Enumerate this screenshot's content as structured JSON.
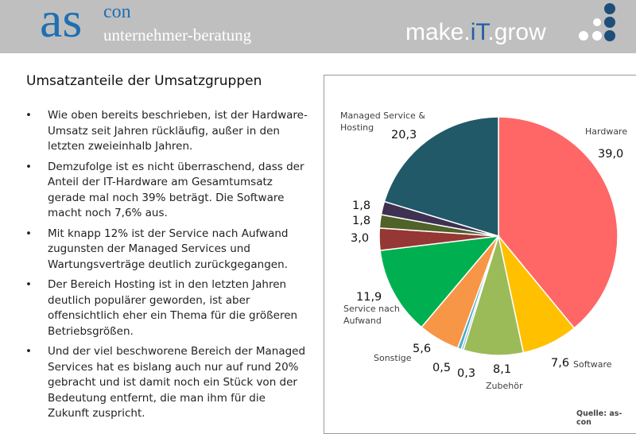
{
  "header": {
    "logo_main": "as",
    "logo_sup": "con",
    "logo_sub": "unternehmer-beratung",
    "slogan_1": "make.",
    "slogan_2": "iT",
    "slogan_3": ".grow"
  },
  "slide_title": "Umsatzanteile der Umsatzgruppen",
  "bullets": [
    "Wie oben bereits beschrieben, ist der Hardware-Umsatz seit Jahren rückläufig, außer in den letzten zweieinhalb Jahren.",
    "Demzufolge ist es nicht überraschend, dass der Anteil der IT-Hardware am Gesamtumsatz gerade mal noch 39% beträgt. Die Software macht noch 7,6% aus.",
    "Mit knapp 12% ist der Service nach Aufwand zugunsten der Managed Services und Wartungsverträge deutlich zurückgegangen.",
    "Der Bereich Hosting ist in den letzten Jahren deutlich populärer geworden, ist aber offensichtlich eher ein Thema für die größeren Betriebsgrößen.",
    "Und der viel beschworene Bereich der Managed Services hat es bislang auch nur auf rund 20% gebracht und ist damit noch ein Stück von der Bedeutung entfernt, die man ihm für die Zukunft zuspricht."
  ],
  "chart_data": {
    "type": "pie",
    "categories": [
      "Hardware",
      "Software",
      "Zubehör",
      null,
      null,
      "Sonstige",
      "Service nach Aufwand",
      null,
      null,
      null,
      "Managed Service & Hosting"
    ],
    "values": [
      39.0,
      7.6,
      8.1,
      0.3,
      0.5,
      5.6,
      11.9,
      3.0,
      1.8,
      1.8,
      20.3
    ],
    "value_labels": [
      "39,0",
      "7,6",
      "8,1",
      "0,3",
      "0,5",
      "5,6",
      "11,9",
      "3,0",
      "1,8",
      "1,8",
      "20,3"
    ],
    "colors": [
      "#ff6666",
      "#ffc000",
      "#9bbb59",
      "#8db3e2",
      "#4bacc6",
      "#f79646",
      "#00b050",
      "#953735",
      "#4f6228",
      "#3f3151",
      "#215968"
    ]
  },
  "source": "Quelle: as-con"
}
